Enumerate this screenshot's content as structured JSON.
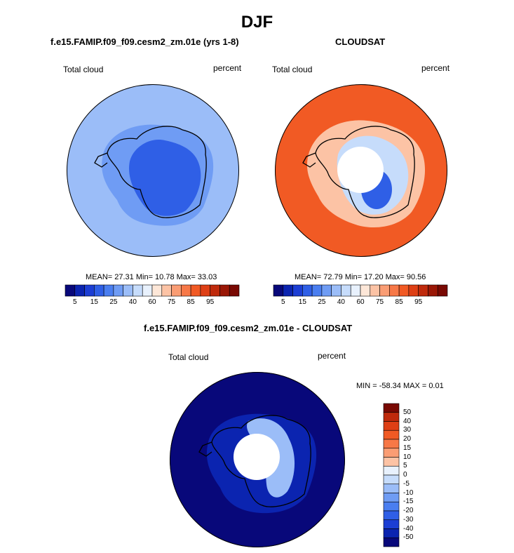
{
  "page": {
    "title": "DJF"
  },
  "colors": {
    "colormap": [
      "#08087a",
      "#0b24b0",
      "#1c3ed4",
      "#2f5fe6",
      "#4a7ef0",
      "#6f9cf4",
      "#9bbdf8",
      "#c6dcfb",
      "#e8f1fd",
      "#fde7d8",
      "#fcc3a5",
      "#fa9d74",
      "#f77847",
      "#f15a24",
      "#de3f15",
      "#bf2a0c",
      "#9a1706",
      "#790903"
    ],
    "land_outline": "#000000"
  },
  "chart_data": [
    {
      "type": "polar_contour",
      "panel": "model",
      "title": "f.e15.FAMIP.f09_f09.cesm2_zm.01e (yrs 1-8)",
      "field_label": "Total cloud",
      "units": "percent",
      "stats_text": "MEAN=  27.31  Min=  10.78  Max=  33.03",
      "stats": {
        "mean": 27.31,
        "min": 10.78,
        "max": 33.03
      },
      "colorbar_levels": [
        5,
        10,
        15,
        20,
        25,
        30,
        35,
        40,
        50,
        60,
        65,
        75,
        80,
        85,
        90,
        95
      ],
      "colorbar_tick_labels": [
        "5",
        "15",
        "25",
        "40",
        "60",
        "75",
        "85",
        "95"
      ],
      "background_level_index": 6,
      "interior_level_index": 3
    },
    {
      "type": "polar_contour",
      "panel": "obs",
      "title": "CLOUDSAT",
      "field_label": "Total cloud",
      "units": "percent",
      "stats_text": "MEAN=  72.79  Min=  17.20  Max=  90.56",
      "stats": {
        "mean": 72.79,
        "min": 17.2,
        "max": 90.56
      },
      "colorbar_levels": [
        5,
        10,
        15,
        20,
        25,
        30,
        35,
        40,
        50,
        60,
        65,
        75,
        80,
        85,
        90,
        95
      ],
      "colorbar_tick_labels": [
        "5",
        "15",
        "25",
        "40",
        "60",
        "75",
        "85",
        "95"
      ],
      "background_level_index": 13,
      "has_missing_pole": true
    },
    {
      "type": "polar_contour",
      "panel": "difference",
      "title": "f.e15.FAMIP.f09_f09.cesm2_zm.01e - CLOUDSAT",
      "field_label": "Total cloud",
      "units": "percent",
      "stats_text": "MIN = -58.34 MAX =   0.01",
      "stats": {
        "min": -58.34,
        "max": 0.01
      },
      "colorbar_tick_labels": [
        "50",
        "40",
        "30",
        "20",
        "15",
        "10",
        "5",
        "0",
        "-5",
        "-10",
        "-15",
        "-20",
        "-30",
        "-40",
        "-50"
      ],
      "background_level_index": 0,
      "has_missing_pole": true
    }
  ]
}
